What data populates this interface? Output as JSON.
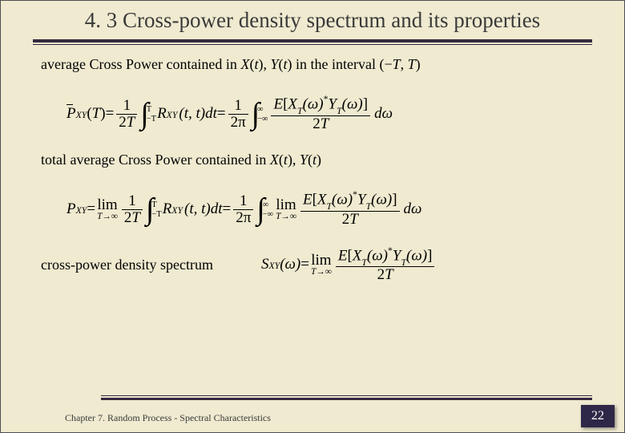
{
  "background_color": "#efead0",
  "accent_color": "#342a3f",
  "text_color": "#000000",
  "title": "4. 3 Cross-power density spectrum and its properties",
  "title_fontsize": 27,
  "body_fontsize": 18,
  "content": {
    "line1_prefix": "average Cross Power contained in ",
    "xt": "X",
    "yt": "Y",
    "t_arg": "t",
    "line1_mid": " in the interval ",
    "interval_open": "(−",
    "T": "T",
    "interval_sep": ", ",
    "interval_close": ")",
    "eq1": {
      "lhs_over": "P",
      "lhs_sub": "XY",
      "lhs_arg_open": "(",
      "lhs_argT": "T",
      "lhs_arg_close": ")",
      "eq": " = ",
      "frac1_num": "1",
      "frac1_den_two": "2",
      "frac1_den_T": "T",
      "int1_top": "T",
      "int1_bot": "−T",
      "R": "R",
      "R_sub": "XY",
      "R_args": "(t, t)dt",
      "eq2": " = ",
      "frac2_num": "1",
      "frac2_den": "2π",
      "int2_top": "∞",
      "int2_bot": "−∞",
      "E": "E",
      "E_open": "[",
      "X": "X",
      "X_sub": "T",
      "omega_arg": "(ω)",
      "star": "*",
      "Y": "Y",
      "Y_sub": "T",
      "E_close": "]",
      "den_two": "2",
      "den_T": "T",
      "domega": "dω"
    },
    "line2_prefix": "total average Cross Power contained in ",
    "eq2": {
      "lhs_P": "P",
      "lhs_sub": "XY",
      "eq": " = ",
      "lim": "lim",
      "lim_below": "T→∞",
      "frac1_num": "1",
      "frac1_den_two": "2",
      "frac1_den_T": "T",
      "int1_top": "T",
      "int1_bot": "−T",
      "R": "R",
      "R_sub": "XY",
      "R_args": "(t, t)dt",
      "eq2": " = ",
      "frac2_num": "1",
      "frac2_den": "2π",
      "int2_top": "∞",
      "int2_bot": "−∞",
      "E": "E",
      "E_open": "[",
      "X": "X",
      "X_sub": "T",
      "omega_arg": "(ω)",
      "star": "*",
      "Y": "Y",
      "Y_sub": "T",
      "E_close": "]",
      "den_two": "2",
      "den_T": "T",
      "domega": "dω"
    },
    "line3": "cross-power density spectrum",
    "eq3": {
      "S": "S",
      "S_sub": "XY",
      "S_arg": "(ω)",
      "eq": " = ",
      "lim": "lim",
      "lim_below": "T→∞",
      "E": "E",
      "E_open": "[",
      "X": "X",
      "X_sub": "T",
      "omega_arg": "(ω)",
      "star": "*",
      "Y": "Y",
      "Y_sub": "T",
      "E_close": "]",
      "den_two": "2",
      "den_T": "T"
    }
  },
  "footer": {
    "chapter": "Chapter 7. Random Process - Spectral Characteristics",
    "page": "22"
  }
}
